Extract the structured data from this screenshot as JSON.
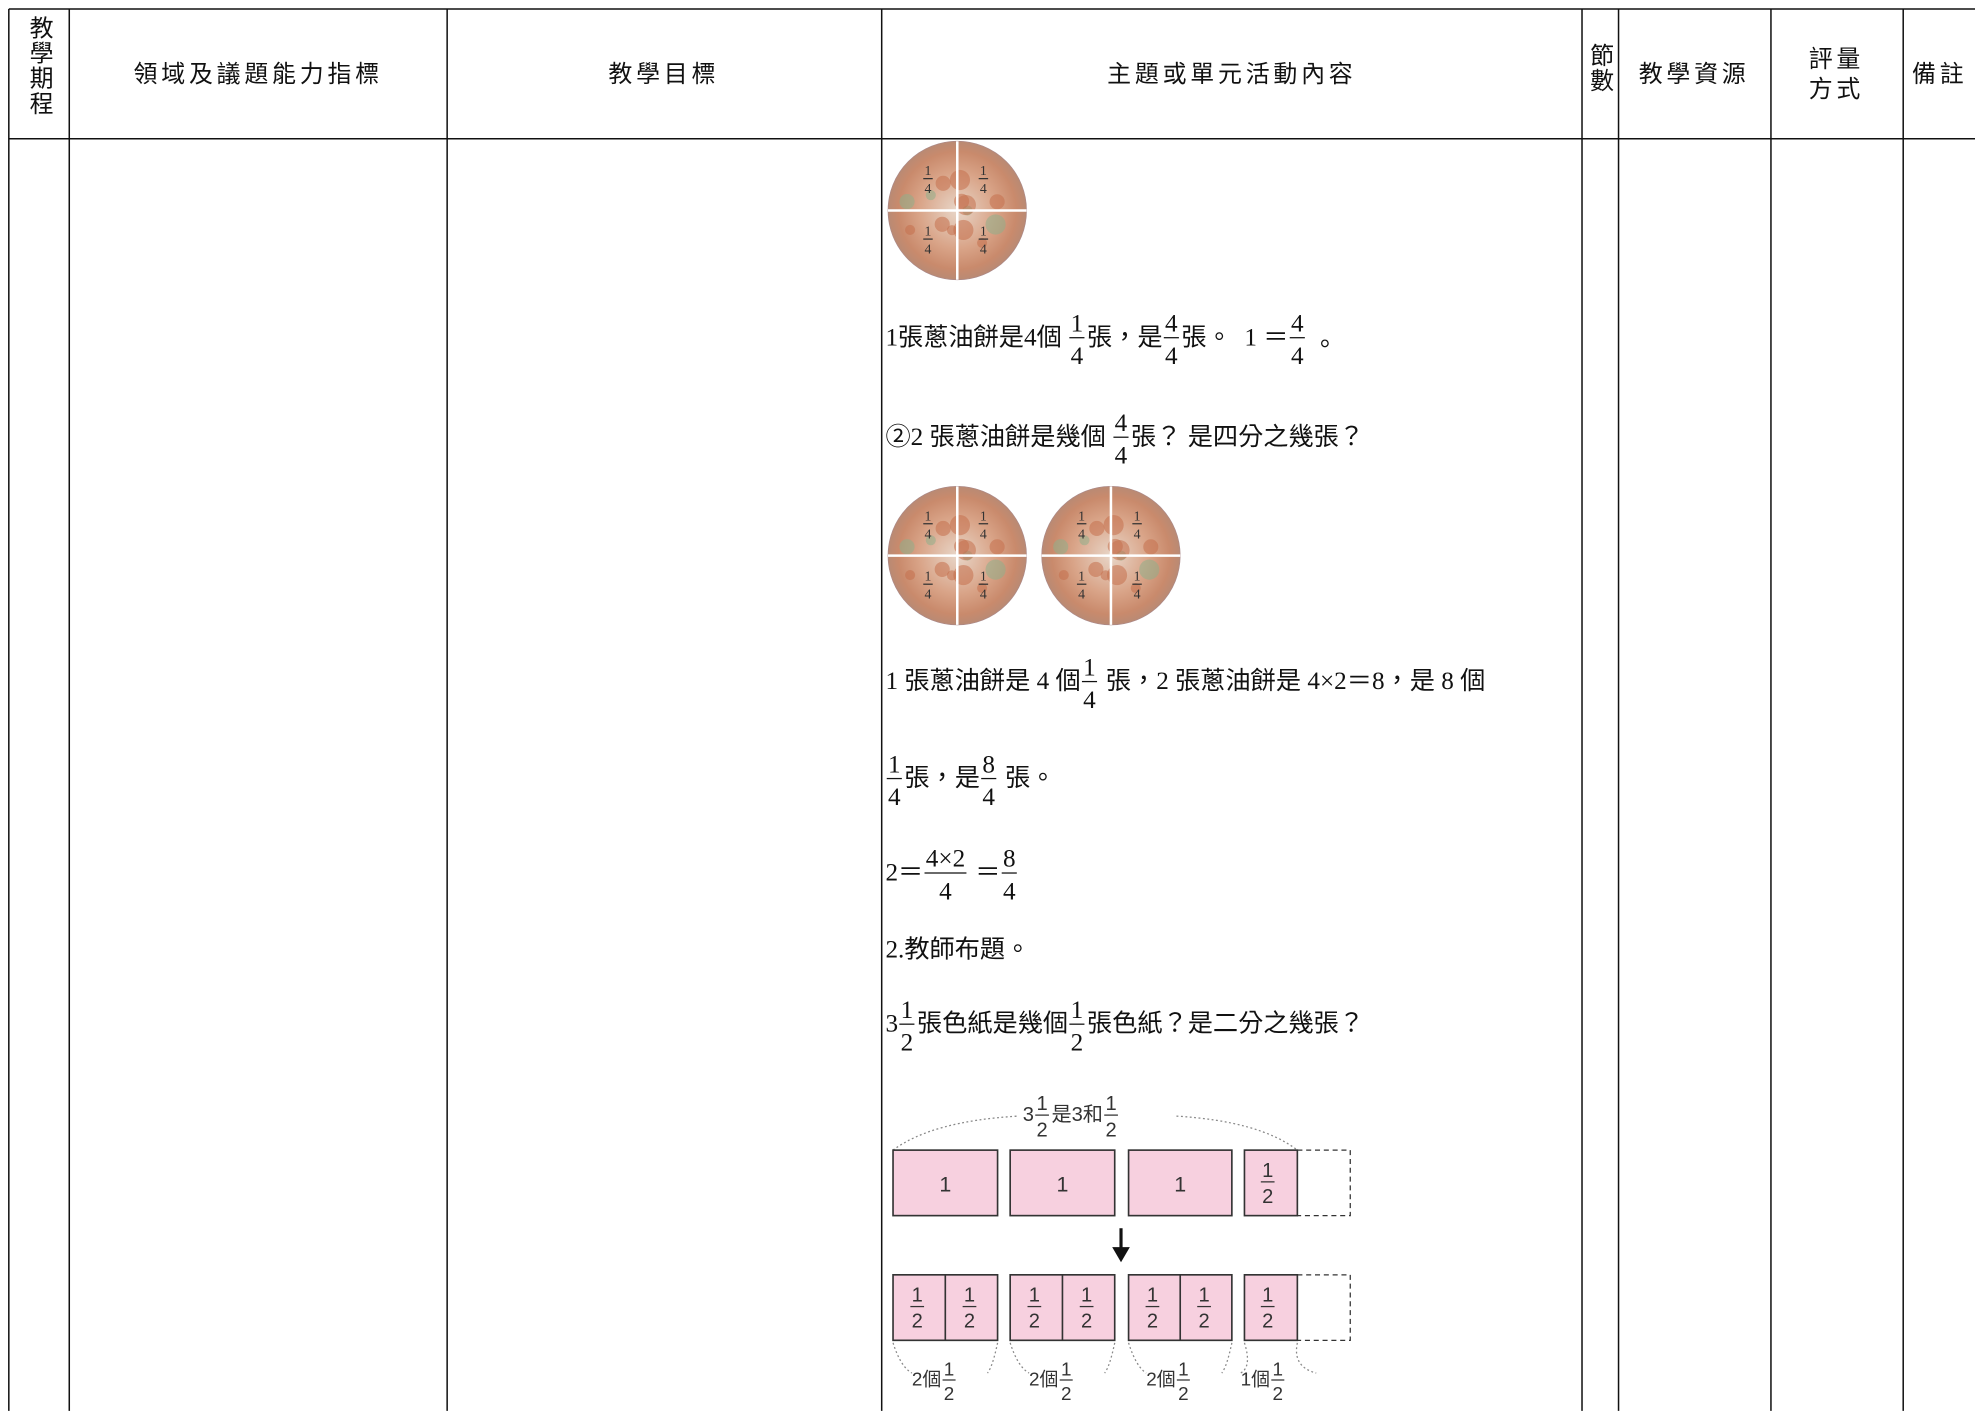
{
  "table": {
    "headers": [
      "教學期程",
      "領域及議題能力指標",
      "教學目標",
      "主題或單元活動內容",
      "節數",
      "教學資源",
      [
        "評量",
        "方式"
      ],
      "備註"
    ]
  },
  "content": {
    "pizza_fraction": {
      "n": "1",
      "d": "4"
    },
    "lines": [
      [
        {
          "t": "1張蔥油餅是4個 "
        },
        {
          "n": "1",
          "d": "4"
        },
        {
          "t": "張，是"
        },
        {
          "n": "4",
          "d": "4"
        },
        {
          "t": "張。  1 ＝"
        },
        {
          "n": "4",
          "d": "4"
        },
        {
          "t": "  。"
        }
      ],
      [
        {
          "t": "②2 張蔥油餅是幾個 "
        },
        {
          "n": "4",
          "d": "4"
        },
        {
          "t": "張？ 是四分之幾張？"
        }
      ],
      [
        {
          "t": "1 張蔥油餅是 4 個"
        },
        {
          "n": "1",
          "d": "4"
        },
        {
          "t": " 張，2 張蔥油餅是 4×2＝8，是 8 個"
        }
      ],
      [
        {
          "n": "1",
          "d": "4"
        },
        {
          "t": "張，是"
        },
        {
          "n": "8",
          "d": "4"
        },
        {
          "t": " 張。"
        }
      ],
      [
        {
          "t": "2＝"
        },
        {
          "n": "4×2",
          "d": "4"
        },
        {
          "t": " ＝"
        },
        {
          "n": "8",
          "d": "4"
        }
      ],
      [
        {
          "t": "2.教師布題。"
        }
      ],
      [
        {
          "t": "3"
        },
        {
          "n": "1",
          "d": "2"
        },
        {
          "t": "張色紙是幾個"
        },
        {
          "n": "1",
          "d": "2"
        },
        {
          "t": "張色紙？是二分之幾張？"
        }
      ]
    ],
    "diagram": {
      "top_label": [
        {
          "t": "3"
        },
        {
          "n": "1",
          "d": "2"
        },
        {
          "t": "是3和"
        },
        {
          "n": "1",
          "d": "2"
        }
      ],
      "whole": "1",
      "half": {
        "n": "1",
        "d": "2"
      },
      "bottom_labels": [
        [
          {
            "t": "2個"
          },
          {
            "n": "1",
            "d": "2"
          }
        ],
        [
          {
            "t": "2個"
          },
          {
            "n": "1",
            "d": "2"
          }
        ],
        [
          {
            "t": "2個"
          },
          {
            "n": "1",
            "d": "2"
          }
        ],
        [
          {
            "t": "1個"
          },
          {
            "n": "1",
            "d": "2"
          }
        ]
      ]
    }
  }
}
